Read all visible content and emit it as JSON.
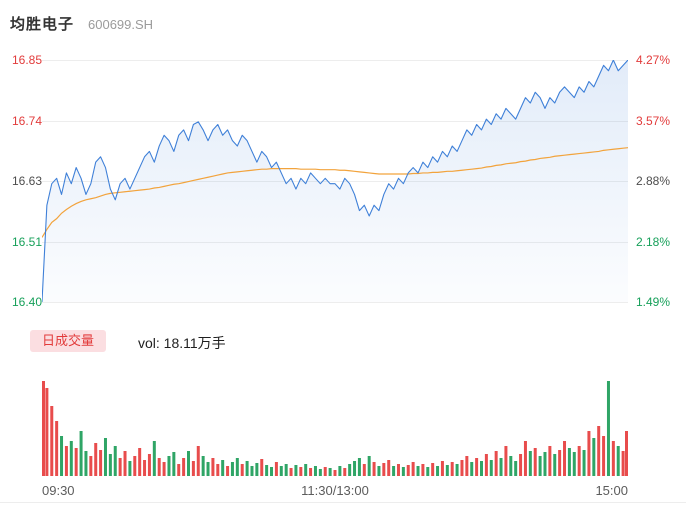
{
  "header": {
    "stock_name": "均胜电子",
    "stock_code": "600699.SH"
  },
  "colors": {
    "up": "#e23b3b",
    "down": "#17a05a",
    "flat": "#4d4d4d",
    "price_line": "#3f80d8",
    "avg_line": "#f2a33c",
    "vol_up": "#e84c4c",
    "vol_down": "#2fa566",
    "badge_bg": "#fbdee1",
    "badge_text": "#e23b3b"
  },
  "chart_data": {
    "type": "line",
    "title": "均胜电子 600699.SH",
    "ylim": [
      16.4,
      16.85
    ],
    "grid": true,
    "x_axis": {
      "labels": [
        "09:30",
        "11:30/13:00",
        "15:00"
      ]
    },
    "y_axis_left": [
      {
        "text": "16.85",
        "tone": "up"
      },
      {
        "text": "16.74",
        "tone": "up"
      },
      {
        "text": "16.63",
        "tone": "flat"
      },
      {
        "text": "16.51",
        "tone": "down"
      },
      {
        "text": "16.40",
        "tone": "down"
      }
    ],
    "y_axis_right": [
      {
        "text": "4.27%",
        "tone": "up"
      },
      {
        "text": "3.57%",
        "tone": "up"
      },
      {
        "text": "2.88%",
        "tone": "flat"
      },
      {
        "text": "2.18%",
        "tone": "down"
      },
      {
        "text": "1.49%",
        "tone": "down"
      }
    ],
    "series": [
      {
        "name": "price",
        "values": [
          16.4,
          16.58,
          16.62,
          16.63,
          16.6,
          16.64,
          16.62,
          16.65,
          16.63,
          16.6,
          16.62,
          16.66,
          16.67,
          16.65,
          16.61,
          16.59,
          16.62,
          16.63,
          16.61,
          16.63,
          16.65,
          16.67,
          16.68,
          16.66,
          16.69,
          16.71,
          16.7,
          16.68,
          16.71,
          16.72,
          16.7,
          16.73,
          16.735,
          16.72,
          16.7,
          16.72,
          16.73,
          16.71,
          16.72,
          16.7,
          16.69,
          16.71,
          16.7,
          16.68,
          16.66,
          16.68,
          16.67,
          16.65,
          16.66,
          16.64,
          16.62,
          16.63,
          16.61,
          16.63,
          16.62,
          16.64,
          16.63,
          16.62,
          16.63,
          16.62,
          16.62,
          16.61,
          16.63,
          16.62,
          16.6,
          16.57,
          16.58,
          16.56,
          16.58,
          16.57,
          16.6,
          16.62,
          16.61,
          16.63,
          16.62,
          16.64,
          16.65,
          16.64,
          16.66,
          16.65,
          16.67,
          16.66,
          16.68,
          16.67,
          16.69,
          16.68,
          16.7,
          16.72,
          16.71,
          16.73,
          16.72,
          16.74,
          16.73,
          16.75,
          16.74,
          16.76,
          16.75,
          16.74,
          16.76,
          16.78,
          16.77,
          16.79,
          16.78,
          16.76,
          16.78,
          16.77,
          16.79,
          16.8,
          16.79,
          16.78,
          16.8,
          16.79,
          16.81,
          16.8,
          16.82,
          16.84,
          16.83,
          16.85,
          16.83,
          16.84,
          16.85
        ]
      },
      {
        "name": "avg",
        "values": [
          16.52,
          16.535,
          16.548,
          16.555,
          16.565,
          16.572,
          16.578,
          16.583,
          16.587,
          16.59,
          16.592,
          16.594,
          16.597,
          16.6,
          16.602,
          16.603,
          16.604,
          16.605,
          16.606,
          16.607,
          16.608,
          16.609,
          16.61,
          16.612,
          16.613,
          16.615,
          16.617,
          16.619,
          16.62,
          16.622,
          16.624,
          16.626,
          16.628,
          16.63,
          16.632,
          16.634,
          16.636,
          16.638,
          16.64,
          16.641,
          16.642,
          16.643,
          16.644,
          16.645,
          16.646,
          16.647,
          16.647,
          16.648,
          16.648,
          16.648,
          16.648,
          16.648,
          16.648,
          16.647,
          16.647,
          16.647,
          16.647,
          16.646,
          16.646,
          16.646,
          16.646,
          16.645,
          16.645,
          16.644,
          16.643,
          16.642,
          16.641,
          16.64,
          16.639,
          16.638,
          16.638,
          16.638,
          16.638,
          16.638,
          16.638,
          16.638,
          16.639,
          16.639,
          16.64,
          16.64,
          16.641,
          16.641,
          16.642,
          16.643,
          16.643,
          16.644,
          16.645,
          16.646,
          16.647,
          16.648,
          16.649,
          16.651,
          16.652,
          16.654,
          16.655,
          16.657,
          16.658,
          16.659,
          16.661,
          16.662,
          16.664,
          16.665,
          16.667,
          16.668,
          16.669,
          16.671,
          16.672,
          16.673,
          16.674,
          16.675,
          16.676,
          16.677,
          16.678,
          16.679,
          16.68,
          16.682,
          16.683,
          16.684,
          16.685,
          16.686,
          16.687
        ]
      }
    ],
    "volume": {
      "legend_label": "日成交量",
      "vol_text": "vol: 18.11万手",
      "values_scale": "relative-percent-of-max (volume axis unlabeled)",
      "values": [
        95,
        88,
        70,
        55,
        40,
        30,
        35,
        28,
        45,
        25,
        20,
        33,
        26,
        38,
        22,
        30,
        18,
        25,
        15,
        20,
        28,
        16,
        22,
        35,
        18,
        14,
        20,
        24,
        12,
        18,
        25,
        15,
        30,
        20,
        14,
        18,
        12,
        16,
        10,
        14,
        18,
        12,
        15,
        10,
        13,
        17,
        11,
        9,
        14,
        10,
        12,
        8,
        11,
        9,
        12,
        8,
        10,
        7,
        9,
        8,
        6,
        10,
        8,
        12,
        15,
        18,
        12,
        20,
        14,
        10,
        13,
        16,
        10,
        12,
        9,
        11,
        14,
        10,
        12,
        9,
        13,
        10,
        15,
        11,
        14,
        12,
        16,
        20,
        14,
        18,
        15,
        22,
        16,
        25,
        18,
        30,
        20,
        15,
        22,
        35,
        25,
        28,
        20,
        24,
        30,
        22,
        26,
        35,
        28,
        24,
        30,
        26,
        45,
        38,
        50,
        40,
        95,
        35,
        30,
        25,
        45
      ]
    }
  }
}
